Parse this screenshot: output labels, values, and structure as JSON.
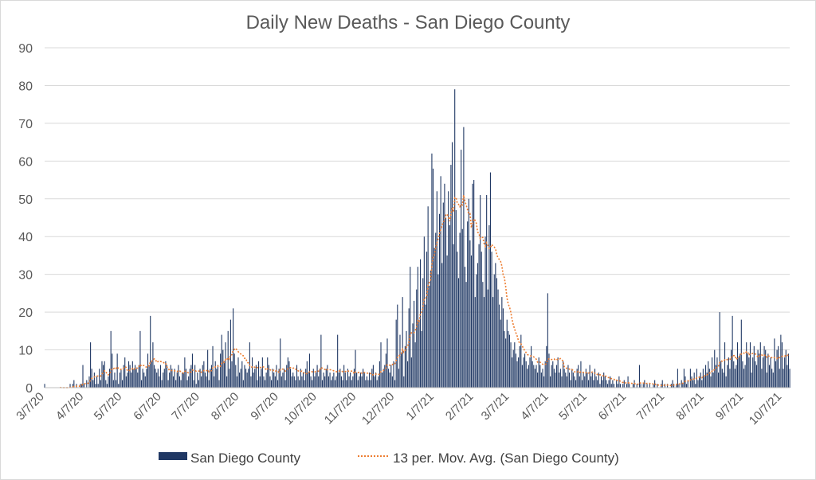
{
  "chart_data": {
    "type": "bar",
    "title": "Daily New Deaths - San Diego County",
    "xlabel": "",
    "ylabel": "",
    "ylim": [
      0,
      90
    ],
    "yticks": [
      0,
      10,
      20,
      30,
      40,
      50,
      60,
      70,
      80,
      90
    ],
    "grid": true,
    "legend_position": "bottom",
    "start_date": "3/7/20",
    "x_tick_labels": [
      "3/7/20",
      "4/7/20",
      "5/7/20",
      "6/7/20",
      "7/7/20",
      "8/7/20",
      "9/7/20",
      "10/7/20",
      "11/7/20",
      "12/7/20",
      "1/7/21",
      "2/7/21",
      "3/7/21",
      "4/7/21",
      "5/7/21",
      "6/7/21",
      "7/7/21",
      "8/7/21",
      "9/7/21",
      "10/7/21"
    ],
    "x_tick_day_offsets": [
      0,
      31,
      61,
      92,
      122,
      153,
      184,
      214,
      245,
      275,
      306,
      337,
      365,
      396,
      426,
      457,
      487,
      518,
      549,
      579
    ],
    "series": [
      {
        "name": "San Diego County",
        "kind": "bar",
        "color": "#203864",
        "daily_values": [
          1,
          0,
          0,
          0,
          0,
          0,
          0,
          0,
          0,
          0,
          0,
          0,
          0,
          0,
          0,
          0,
          0,
          0,
          0,
          0,
          1,
          0,
          1,
          2,
          0,
          1,
          0,
          0,
          1,
          1,
          6,
          1,
          0,
          2,
          0,
          3,
          12,
          5,
          2,
          4,
          1,
          3,
          1,
          5,
          2,
          7,
          6,
          7,
          2,
          1,
          3,
          5,
          15,
          9,
          2,
          4,
          2,
          9,
          1,
          4,
          5,
          2,
          6,
          8,
          3,
          4,
          7,
          6,
          4,
          7,
          5,
          6,
          5,
          4,
          6,
          15,
          2,
          5,
          4,
          3,
          5,
          9,
          6,
          19,
          7,
          12,
          6,
          5,
          4,
          5,
          3,
          6,
          2,
          4,
          5,
          7,
          6,
          2,
          4,
          6,
          5,
          3,
          5,
          2,
          4,
          6,
          3,
          2,
          4,
          4,
          8,
          5,
          2,
          3,
          5,
          6,
          9,
          2,
          6,
          1,
          4,
          2,
          5,
          3,
          6,
          7,
          4,
          3,
          10,
          2,
          5,
          6,
          11,
          3,
          7,
          5,
          6,
          2,
          9,
          14,
          10,
          7,
          12,
          3,
          15,
          5,
          18,
          7,
          21,
          9,
          6,
          3,
          8,
          4,
          5,
          7,
          2,
          6,
          5,
          4,
          5,
          12,
          3,
          8,
          4,
          5,
          6,
          2,
          7,
          3,
          5,
          8,
          3,
          2,
          4,
          8,
          6,
          3,
          2,
          5,
          4,
          3,
          6,
          2,
          5,
          13,
          3,
          4,
          5,
          2,
          6,
          8,
          7,
          5,
          3,
          4,
          3,
          2,
          6,
          3,
          2,
          5,
          3,
          4,
          2,
          5,
          7,
          4,
          9,
          3,
          2,
          5,
          3,
          4,
          6,
          3,
          5,
          14,
          2,
          4,
          3,
          5,
          6,
          3,
          4,
          2,
          3,
          4,
          2,
          3,
          14,
          4,
          5,
          3,
          2,
          6,
          4,
          2,
          5,
          3,
          4,
          2,
          3,
          5,
          10,
          4,
          2,
          3,
          4,
          3,
          5,
          4,
          2,
          3,
          2,
          4,
          2,
          5,
          6,
          3,
          4,
          2,
          3,
          7,
          12,
          4,
          5,
          6,
          9,
          13,
          5,
          4,
          6,
          3,
          7,
          2,
          18,
          22,
          5,
          14,
          9,
          24,
          3,
          11,
          15,
          7,
          21,
          32,
          8,
          17,
          23,
          12,
          26,
          32,
          18,
          34,
          15,
          29,
          40,
          22,
          36,
          48,
          27,
          31,
          62,
          58,
          37,
          41,
          52,
          30,
          46,
          56,
          33,
          49,
          54,
          45,
          35,
          52,
          43,
          59,
          65,
          38,
          79,
          47,
          36,
          29,
          41,
          63,
          42,
          69,
          32,
          28,
          44,
          50,
          39,
          35,
          54,
          55,
          24,
          30,
          33,
          38,
          51,
          36,
          28,
          24,
          40,
          51,
          26,
          43,
          57,
          36,
          24,
          30,
          33,
          29,
          26,
          22,
          18,
          24,
          21,
          15,
          13,
          18,
          15,
          14,
          12,
          8,
          10,
          12,
          9,
          7,
          8,
          11,
          14,
          6,
          8,
          9,
          7,
          5,
          6,
          8,
          11,
          7,
          6,
          5,
          6,
          4,
          8,
          6,
          4,
          5,
          3,
          7,
          11,
          25,
          9,
          3,
          6,
          7,
          5,
          4,
          6,
          8,
          4,
          5,
          3,
          7,
          5,
          4,
          3,
          6,
          4,
          2,
          5,
          4,
          3,
          2,
          5,
          6,
          3,
          7,
          2,
          4,
          3,
          5,
          4,
          2,
          6,
          3,
          4,
          2,
          5,
          3,
          2,
          4,
          1,
          3,
          2,
          4,
          3,
          2,
          1,
          2,
          3,
          1,
          2,
          1,
          0,
          2,
          1,
          3,
          1,
          0,
          1,
          2,
          0,
          1,
          3,
          1,
          0,
          0,
          1,
          2,
          0,
          1,
          0,
          6,
          1,
          0,
          1,
          2,
          0,
          1,
          0,
          1,
          0,
          0,
          1,
          2,
          0,
          1,
          0,
          0,
          1,
          2,
          0,
          1,
          0,
          1,
          0,
          0,
          1,
          2,
          1,
          0,
          1,
          5,
          1,
          0,
          2,
          1,
          5,
          3,
          1,
          2,
          0,
          5,
          3,
          2,
          4,
          1,
          5,
          2,
          3,
          4,
          2,
          5,
          3,
          6,
          4,
          7,
          5,
          3,
          8,
          4,
          10,
          6,
          8,
          4,
          20,
          7,
          5,
          4,
          12,
          3,
          6,
          8,
          5,
          10,
          19,
          7,
          5,
          6,
          12,
          8,
          9,
          18,
          7,
          5,
          6,
          12,
          9,
          8,
          12,
          4,
          8,
          11,
          7,
          6,
          10,
          9,
          12,
          5,
          8,
          11,
          10,
          4,
          9,
          6,
          8,
          5,
          4,
          13,
          7,
          10,
          11,
          5,
          14,
          12,
          5,
          8,
          10,
          6,
          9,
          5
        ],
        "legend_label": "San Diego County"
      },
      {
        "name": "13 per. Mov. Avg. (San Diego County)",
        "kind": "line",
        "style": "dotted",
        "color": "#ED7D31",
        "window": 13,
        "legend_label": "13 per. Mov. Avg. (San Diego County)"
      }
    ]
  }
}
